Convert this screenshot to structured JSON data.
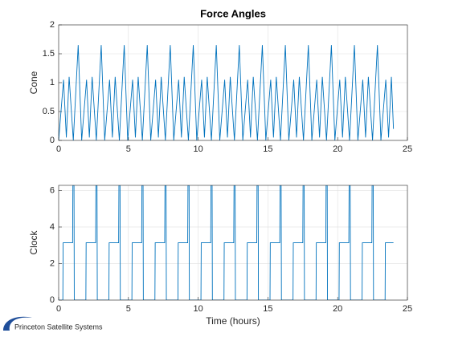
{
  "chart_data": [
    {
      "type": "line",
      "title": "Force Angles",
      "ylabel": "Cone",
      "xlim": [
        0,
        25
      ],
      "xticks": [
        0,
        5,
        10,
        15,
        20,
        25
      ],
      "ylim": [
        0,
        2
      ],
      "yticks": [
        0,
        0.5,
        1,
        1.5,
        2
      ],
      "grid": true,
      "x": [
        0,
        0.35,
        0.55,
        0.75,
        1.05,
        1.4,
        1.65,
        2.0,
        2.2,
        2.4,
        2.7,
        3.05,
        3.3,
        3.65,
        3.85,
        4.05,
        4.35,
        4.7,
        4.95,
        5.3,
        5.5,
        5.7,
        6.0,
        6.35,
        6.6,
        6.95,
        7.15,
        7.35,
        7.65,
        8.0,
        8.25,
        8.6,
        8.8,
        9.0,
        9.3,
        9.65,
        9.9,
        10.25,
        10.45,
        10.65,
        10.95,
        11.3,
        11.55,
        11.9,
        12.1,
        12.3,
        12.6,
        12.95,
        13.2,
        13.55,
        13.75,
        13.95,
        14.25,
        14.6,
        14.85,
        15.2,
        15.4,
        15.6,
        15.9,
        16.25,
        16.5,
        16.85,
        17.05,
        17.25,
        17.55,
        17.9,
        18.15,
        18.5,
        18.7,
        18.9,
        19.2,
        19.55,
        19.8,
        20.15,
        20.35,
        20.55,
        20.85,
        21.2,
        21.45,
        21.8,
        22.0,
        22.2,
        22.5,
        22.85,
        23.1,
        23.45,
        23.65,
        23.85,
        24.0
      ],
      "series": [
        {
          "color": "#0072bd",
          "values": [
            0,
            1.05,
            0.05,
            1.1,
            0,
            1.65,
            0,
            1.05,
            0.05,
            1.1,
            0,
            1.65,
            0,
            1.05,
            0.05,
            1.1,
            0,
            1.65,
            0,
            1.05,
            0.05,
            1.1,
            0,
            1.65,
            0,
            1.05,
            0.05,
            1.1,
            0,
            1.65,
            0,
            1.05,
            0.05,
            1.1,
            0,
            1.65,
            0,
            1.05,
            0.05,
            1.1,
            0,
            1.65,
            0,
            1.05,
            0.05,
            1.1,
            0,
            1.65,
            0,
            1.05,
            0.05,
            1.1,
            0,
            1.65,
            0,
            1.05,
            0.05,
            1.1,
            0,
            1.65,
            0,
            1.05,
            0.05,
            1.1,
            0,
            1.65,
            0,
            1.05,
            0.05,
            1.1,
            0,
            1.65,
            0,
            1.05,
            0.05,
            1.1,
            0,
            1.65,
            0,
            1.05,
            0.05,
            1.1,
            0,
            1.65,
            0,
            1.05,
            0.05,
            1.1,
            0.2
          ]
        }
      ]
    },
    {
      "type": "line",
      "ylabel": "Clock",
      "xlabel": "Time (hours)",
      "xlim": [
        0,
        25
      ],
      "xticks": [
        0,
        5,
        10,
        15,
        20,
        25
      ],
      "ylim": [
        0,
        6.2832
      ],
      "yticks": [
        0,
        2,
        4,
        6
      ],
      "grid": true,
      "x": [
        0,
        0.3,
        0.32,
        1.0,
        1.02,
        1.1,
        1.12,
        1.95,
        1.97,
        2.65,
        2.67,
        2.75,
        2.77,
        3.6,
        3.62,
        4.3,
        4.32,
        4.4,
        4.42,
        5.25,
        5.27,
        5.95,
        5.97,
        6.05,
        6.07,
        6.9,
        6.92,
        7.6,
        7.62,
        7.7,
        7.72,
        8.55,
        8.57,
        9.25,
        9.27,
        9.35,
        9.37,
        10.2,
        10.22,
        10.9,
        10.92,
        11.0,
        11.02,
        11.85,
        11.87,
        12.55,
        12.57,
        12.65,
        12.67,
        13.5,
        13.52,
        14.2,
        14.22,
        14.3,
        14.32,
        15.15,
        15.17,
        15.85,
        15.87,
        15.95,
        15.97,
        16.8,
        16.82,
        17.5,
        17.52,
        17.6,
        17.62,
        18.45,
        18.47,
        19.15,
        19.17,
        19.25,
        19.27,
        20.1,
        20.12,
        20.8,
        20.82,
        20.9,
        20.92,
        21.75,
        21.77,
        22.45,
        22.47,
        22.55,
        22.57,
        23.4,
        23.42,
        24.0
      ],
      "series": [
        {
          "color": "#0072bd",
          "values": [
            0,
            0,
            3.14,
            3.14,
            6.28,
            6.28,
            0,
            0,
            3.14,
            3.14,
            6.28,
            6.28,
            0,
            0,
            3.14,
            3.14,
            6.28,
            6.28,
            0,
            0,
            3.14,
            3.14,
            6.28,
            6.28,
            0,
            0,
            3.14,
            3.14,
            6.28,
            6.28,
            0,
            0,
            3.14,
            3.14,
            6.28,
            6.28,
            0,
            0,
            3.14,
            3.14,
            6.28,
            6.28,
            0,
            0,
            3.14,
            3.14,
            6.28,
            6.28,
            0,
            0,
            3.14,
            3.14,
            6.28,
            6.28,
            0,
            0,
            3.14,
            3.14,
            6.28,
            6.28,
            0,
            0,
            3.14,
            3.14,
            6.28,
            6.28,
            0,
            0,
            3.14,
            3.14,
            6.28,
            6.28,
            0,
            0,
            3.14,
            3.14,
            6.28,
            6.28,
            0,
            0,
            3.14,
            3.14,
            6.28,
            6.28,
            0,
            0,
            3.14,
            3.14
          ]
        }
      ]
    }
  ],
  "footer": "Princeton Satellite Systems"
}
